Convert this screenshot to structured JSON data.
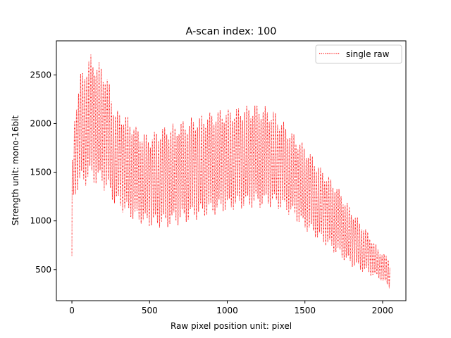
{
  "chart_data": {
    "type": "line",
    "title": "A-scan index: 100",
    "xlabel": "Raw pixel position unit: pixel",
    "ylabel": "Strength unit: mono-16bit",
    "xlim": [
      -100,
      2150
    ],
    "ylim": [
      180,
      2850
    ],
    "x_ticks": [
      0,
      500,
      1000,
      1500,
      2000
    ],
    "y_ticks": [
      500,
      1000,
      1500,
      2000,
      2500
    ],
    "x_tick_labels": [
      "0",
      "500",
      "1000",
      "1500",
      "2000"
    ],
    "y_tick_labels": [
      "500",
      "1000",
      "1500",
      "2000",
      "2500"
    ],
    "grid": false,
    "legend_position": "upper right",
    "series": [
      {
        "name": "single raw",
        "color": "#ff0000",
        "linestyle": "dotted",
        "points": 2048,
        "upper_envelope": [
          [
            0,
            1500
          ],
          [
            20,
            2200
          ],
          [
            60,
            2550
          ],
          [
            120,
            2720
          ],
          [
            170,
            2650
          ],
          [
            220,
            2550
          ],
          [
            280,
            2150
          ],
          [
            350,
            2100
          ],
          [
            430,
            1950
          ],
          [
            500,
            1880
          ],
          [
            560,
            1960
          ],
          [
            650,
            2000
          ],
          [
            800,
            2080
          ],
          [
            950,
            2150
          ],
          [
            1100,
            2180
          ],
          [
            1200,
            2210
          ],
          [
            1300,
            2140
          ],
          [
            1400,
            1950
          ],
          [
            1500,
            1780
          ],
          [
            1600,
            1560
          ],
          [
            1700,
            1380
          ],
          [
            1800,
            1120
          ],
          [
            1900,
            900
          ],
          [
            1980,
            700
          ],
          [
            2047,
            620
          ]
        ],
        "lower_envelope": [
          [
            0,
            1150
          ],
          [
            20,
            1250
          ],
          [
            60,
            1340
          ],
          [
            120,
            1380
          ],
          [
            200,
            1330
          ],
          [
            280,
            1150
          ],
          [
            350,
            1050
          ],
          [
            420,
            970
          ],
          [
            500,
            930
          ],
          [
            600,
            920
          ],
          [
            700,
            960
          ],
          [
            800,
            1010
          ],
          [
            900,
            1050
          ],
          [
            1000,
            1090
          ],
          [
            1100,
            1120
          ],
          [
            1200,
            1130
          ],
          [
            1300,
            1140
          ],
          [
            1400,
            1060
          ],
          [
            1500,
            900
          ],
          [
            1600,
            780
          ],
          [
            1700,
            650
          ],
          [
            1800,
            530
          ],
          [
            1900,
            450
          ],
          [
            1980,
            400
          ],
          [
            2047,
            300
          ]
        ]
      }
    ]
  }
}
